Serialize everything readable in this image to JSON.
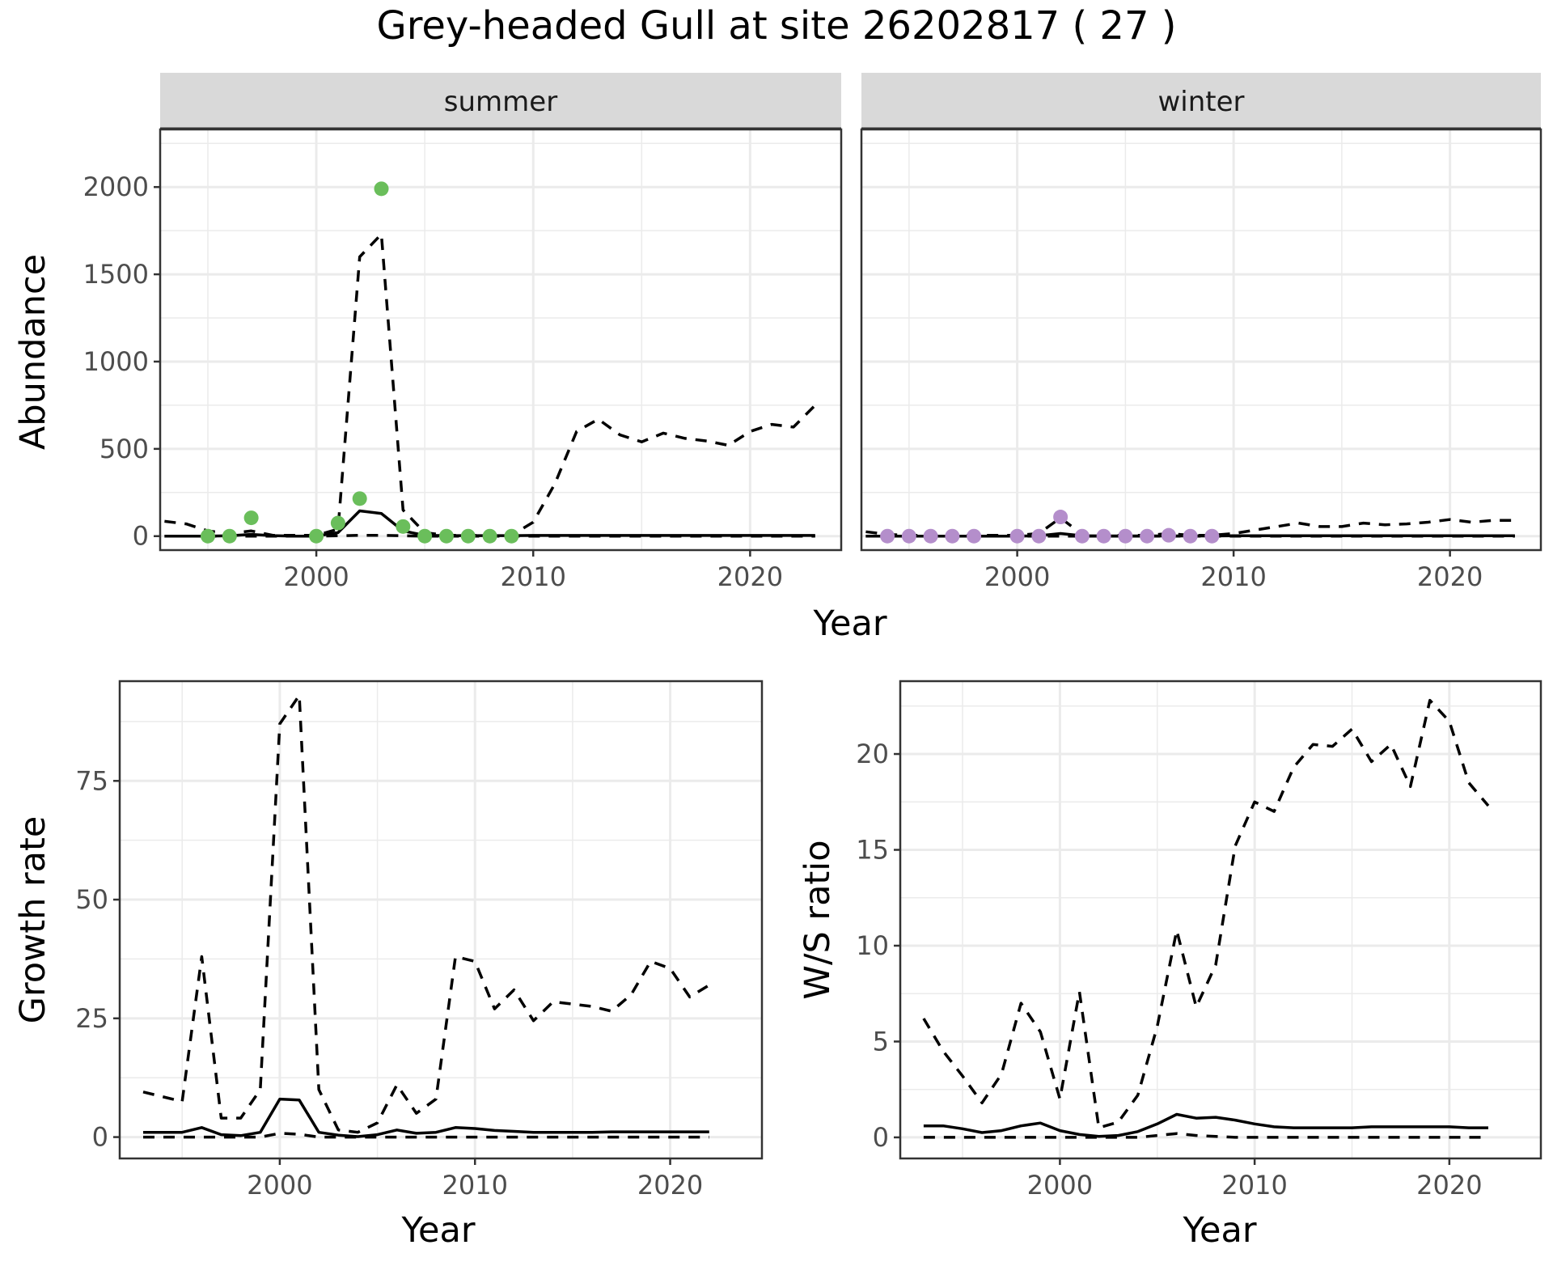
{
  "title": "Grey-headed Gull at site 26202817 ( 27 )",
  "colors": {
    "summer": "#6ABE5B",
    "winter": "#B48ECB"
  },
  "chart_data": [
    {
      "type": "line",
      "facets": [
        "summer",
        "winter"
      ],
      "xlabel": "Year",
      "ylabel": "Abundance",
      "xlim": [
        1992.8,
        2024.2
      ],
      "ylim": [
        -80,
        2330
      ],
      "xticks": [
        2000,
        2010,
        2020
      ],
      "yticks": [
        0,
        500,
        1000,
        1500,
        2000
      ],
      "grid": true,
      "panels": [
        {
          "facet": "summer",
          "x": [
            1993,
            1994,
            1995,
            1996,
            1997,
            1998,
            1999,
            2000,
            2001,
            2002,
            2003,
            2004,
            2005,
            2006,
            2007,
            2008,
            2009,
            2010,
            2011,
            2012,
            2013,
            2014,
            2015,
            2016,
            2017,
            2018,
            2019,
            2020,
            2021,
            2022,
            2023
          ],
          "mean": [
            0,
            0,
            0,
            2,
            10,
            3,
            0,
            0,
            20,
            145,
            130,
            30,
            5,
            3,
            3,
            3,
            3,
            4,
            4,
            4,
            4,
            4,
            4,
            4,
            4,
            4,
            4,
            4,
            4,
            4,
            4
          ],
          "upper": [
            85,
            70,
            30,
            15,
            30,
            5,
            5,
            5,
            40,
            1600,
            1730,
            150,
            20,
            5,
            5,
            5,
            5,
            80,
            300,
            600,
            670,
            580,
            540,
            590,
            560,
            545,
            520,
            600,
            640,
            625,
            750
          ],
          "lower": [
            0,
            0,
            0,
            0,
            0,
            0,
            0,
            0,
            2,
            5,
            5,
            2,
            0,
            0,
            0,
            0,
            0,
            0,
            0,
            0,
            0,
            0,
            0,
            0,
            0,
            0,
            0,
            0,
            0,
            0,
            0
          ],
          "obs_x": [
            1995,
            1996,
            1997,
            2000,
            2001,
            2002,
            2003,
            2004,
            2005,
            2006,
            2007,
            2008,
            2009
          ],
          "obs_y": [
            0,
            0,
            105,
            0,
            75,
            215,
            1990,
            55,
            0,
            0,
            0,
            0,
            0
          ]
        },
        {
          "facet": "winter",
          "x": [
            1993,
            1994,
            1995,
            1996,
            1997,
            1998,
            1999,
            2000,
            2001,
            2002,
            2003,
            2004,
            2005,
            2006,
            2007,
            2008,
            2009,
            2010,
            2011,
            2012,
            2013,
            2014,
            2015,
            2016,
            2017,
            2018,
            2019,
            2020,
            2021,
            2022,
            2023
          ],
          "mean": [
            0,
            0,
            0,
            0,
            0,
            0,
            0,
            0,
            2,
            15,
            2,
            1,
            1,
            1,
            1,
            1,
            1,
            2,
            2,
            2,
            2,
            2,
            2,
            2,
            2,
            2,
            2,
            2,
            2,
            2,
            2
          ],
          "upper": [
            25,
            10,
            5,
            5,
            5,
            5,
            5,
            5,
            15,
            105,
            10,
            5,
            5,
            5,
            15,
            5,
            5,
            15,
            35,
            55,
            75,
            55,
            55,
            75,
            65,
            70,
            80,
            95,
            80,
            90,
            90
          ],
          "lower": [
            0,
            0,
            0,
            0,
            0,
            0,
            0,
            0,
            0,
            0,
            0,
            0,
            0,
            0,
            0,
            0,
            0,
            0,
            0,
            0,
            0,
            0,
            0,
            0,
            0,
            0,
            0,
            0,
            0,
            0,
            0
          ],
          "obs_x": [
            1994,
            1995,
            1996,
            1997,
            1998,
            2000,
            2001,
            2002,
            2003,
            2004,
            2005,
            2006,
            2007,
            2008,
            2009
          ],
          "obs_y": [
            0,
            0,
            0,
            0,
            0,
            0,
            0,
            110,
            0,
            0,
            0,
            0,
            5,
            0,
            0
          ]
        }
      ]
    },
    {
      "type": "line",
      "xlabel": "Year",
      "ylabel": "Growth rate",
      "xlim": [
        1991.8,
        2024.7
      ],
      "ylim": [
        -4.5,
        96
      ],
      "xticks": [
        2000,
        2010,
        2020
      ],
      "yticks": [
        0,
        25,
        50,
        75
      ],
      "grid": true,
      "x": [
        1993,
        1994,
        1995,
        1996,
        1997,
        1998,
        1999,
        2000,
        2001,
        2002,
        2003,
        2004,
        2005,
        2006,
        2007,
        2008,
        2009,
        2010,
        2011,
        2012,
        2013,
        2014,
        2015,
        2016,
        2017,
        2018,
        2019,
        2020,
        2021,
        2022
      ],
      "mean": [
        1,
        1,
        1,
        2,
        0.5,
        0.3,
        1,
        8,
        7.8,
        1,
        0.4,
        0.1,
        0.5,
        1.5,
        0.8,
        1,
        2,
        1.8,
        1.4,
        1.2,
        1,
        1,
        1,
        1,
        1.1,
        1.1,
        1.1,
        1.1,
        1.1,
        1.1
      ],
      "upper": [
        9.5,
        8.5,
        7.5,
        38,
        4,
        4,
        10,
        87,
        93,
        10,
        1.5,
        1,
        3,
        11,
        5,
        8,
        38,
        37,
        27,
        31,
        24.5,
        28.5,
        28,
        27.5,
        26.5,
        30,
        37,
        35.5,
        29.5,
        32
      ],
      "lower": [
        0,
        0,
        0,
        0,
        0,
        0,
        0,
        0.8,
        0.6,
        0,
        0,
        0,
        0,
        0,
        0,
        0,
        0,
        0,
        0,
        0,
        0,
        0,
        0,
        0,
        0,
        0,
        0,
        0,
        0,
        0
      ]
    },
    {
      "type": "line",
      "xlabel": "Year",
      "ylabel": "W/S ratio",
      "xlim": [
        1991.8,
        2024.7
      ],
      "ylim": [
        -1.1,
        23.8
      ],
      "xticks": [
        2000,
        2010,
        2020
      ],
      "yticks": [
        0,
        5,
        10,
        15,
        20
      ],
      "grid": true,
      "x": [
        1993,
        1994,
        1995,
        1996,
        1997,
        1998,
        1999,
        2000,
        2001,
        2002,
        2003,
        2004,
        2005,
        2006,
        2007,
        2008,
        2009,
        2010,
        2011,
        2012,
        2013,
        2014,
        2015,
        2016,
        2017,
        2018,
        2019,
        2020,
        2021,
        2022
      ],
      "mean": [
        0.6,
        0.6,
        0.45,
        0.25,
        0.35,
        0.6,
        0.75,
        0.35,
        0.15,
        0.05,
        0.1,
        0.3,
        0.7,
        1.2,
        1.0,
        1.05,
        0.9,
        0.7,
        0.55,
        0.5,
        0.5,
        0.5,
        0.5,
        0.55,
        0.55,
        0.55,
        0.55,
        0.55,
        0.5,
        0.5
      ],
      "upper": [
        6.2,
        4.5,
        3.2,
        1.8,
        3.3,
        7,
        5.5,
        2,
        7.6,
        0.5,
        0.8,
        2.2,
        5.8,
        10.8,
        6.8,
        9,
        15.2,
        17.5,
        17,
        19.3,
        20.5,
        20.4,
        21.3,
        19.6,
        20.5,
        18.3,
        22.8,
        21.7,
        18.5,
        17.3
      ],
      "lower": [
        0,
        0,
        0,
        0,
        0,
        0,
        0,
        0,
        0,
        0,
        0,
        0,
        0.1,
        0.2,
        0.1,
        0.05,
        0,
        0,
        0,
        0,
        0,
        0,
        0,
        0,
        0,
        0,
        0,
        0,
        0,
        0
      ]
    }
  ]
}
